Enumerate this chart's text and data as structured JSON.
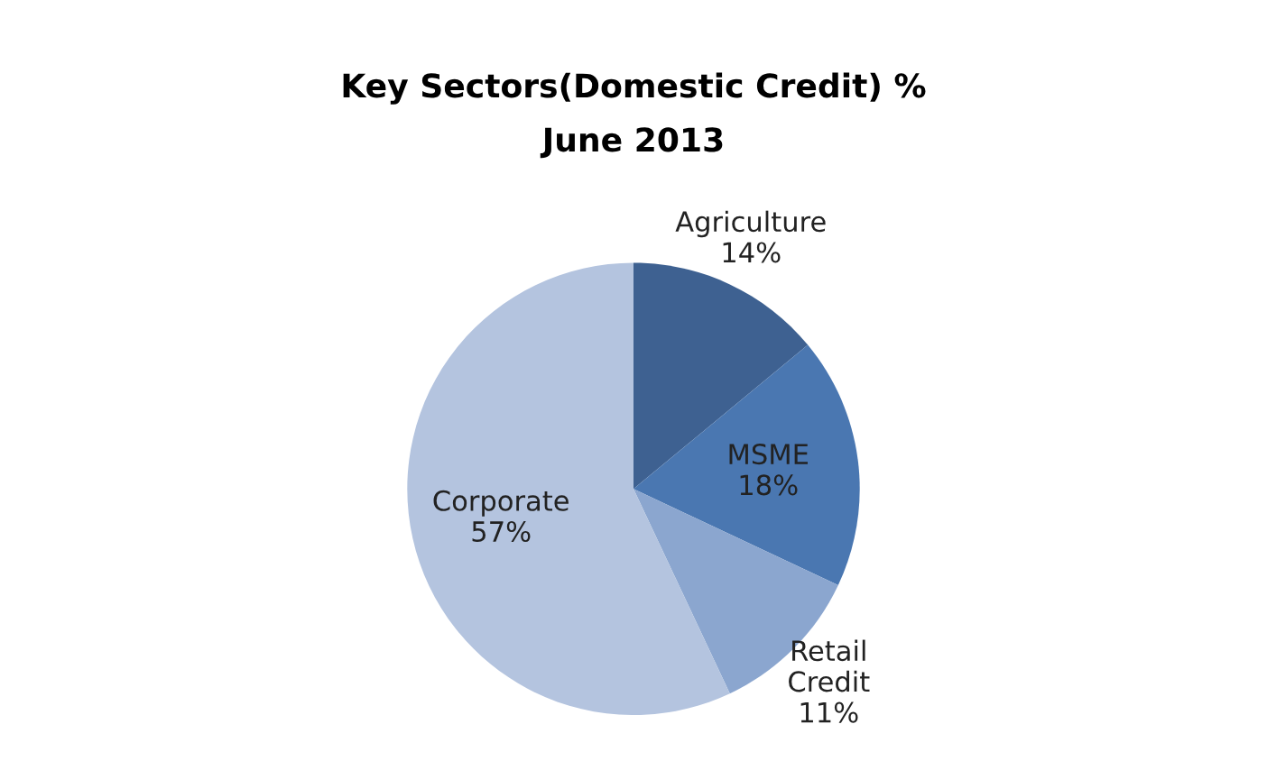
{
  "chart_data": {
    "type": "pie",
    "title": "Key Sectors(Domestic Credit) %",
    "subtitle": "June 2013",
    "categories": [
      "Agriculture",
      "MSME",
      "Retail Credit",
      "Corporate"
    ],
    "values": [
      14,
      18,
      11,
      57
    ],
    "colors": [
      "#3e6191",
      "#4a77b1",
      "#8ba6cf",
      "#b4c4df"
    ],
    "value_labels": [
      "14%",
      "18%",
      "11%",
      "57%"
    ],
    "legend": false
  }
}
